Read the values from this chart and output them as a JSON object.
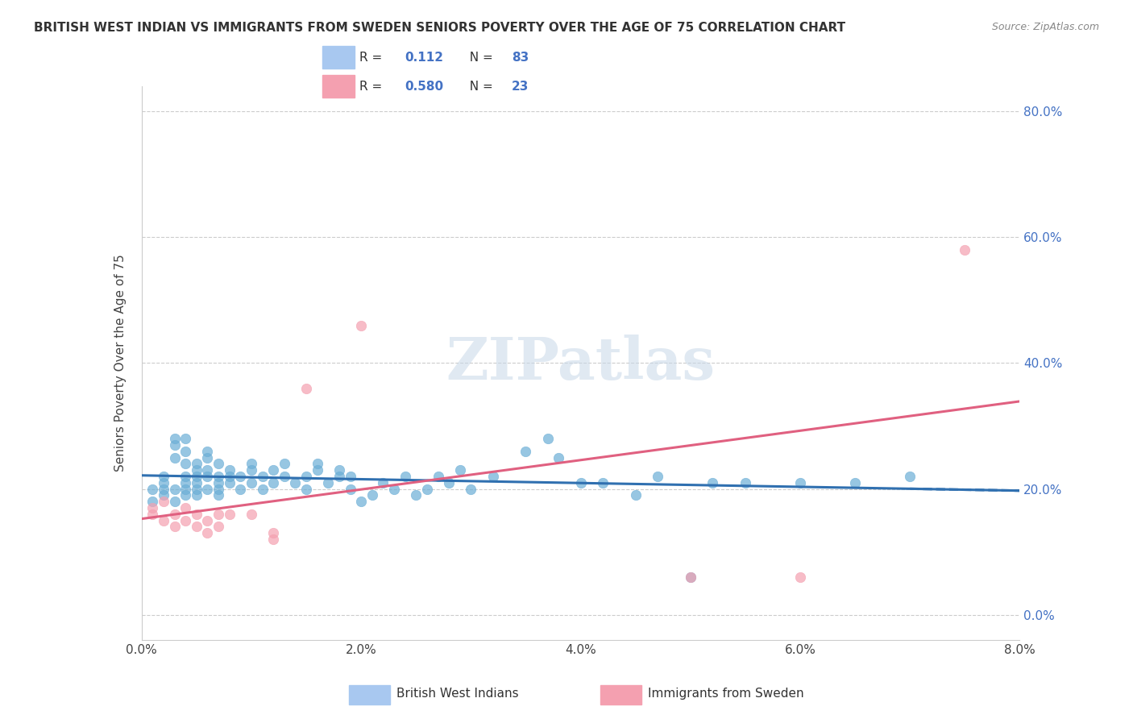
{
  "title": "BRITISH WEST INDIAN VS IMMIGRANTS FROM SWEDEN SENIORS POVERTY OVER THE AGE OF 75 CORRELATION CHART",
  "source": "Source: ZipAtlas.com",
  "xlabel_ticks": [
    "0.0%",
    "2.0%",
    "4.0%",
    "6.0%",
    "8.0%"
  ],
  "ylabel_label": "Seniors Poverty Over the Age of 75",
  "ylabel_ticks": [
    "0.0%",
    "20.0%",
    "40.0%",
    "60.0%",
    "80.0%"
  ],
  "xlim": [
    0.0,
    0.08
  ],
  "ylim": [
    -0.04,
    0.84
  ],
  "legend_entries": [
    {
      "label": "R =  0.112   N = 83",
      "color": "#a8c8f0",
      "R": 0.112,
      "N": 83
    },
    {
      "label": "R =  0.580   N = 23",
      "color": "#f4a0b0",
      "R": 0.58,
      "N": 23
    }
  ],
  "watermark": "ZIPatlas",
  "blue_color": "#6baed6",
  "pink_color": "#f4a0b0",
  "blue_line_color": "#3070b0",
  "pink_line_color": "#e06080",
  "blue_scatter": [
    [
      0.001,
      0.18
    ],
    [
      0.001,
      0.2
    ],
    [
      0.002,
      0.19
    ],
    [
      0.002,
      0.22
    ],
    [
      0.002,
      0.2
    ],
    [
      0.002,
      0.21
    ],
    [
      0.003,
      0.2
    ],
    [
      0.003,
      0.18
    ],
    [
      0.003,
      0.25
    ],
    [
      0.003,
      0.28
    ],
    [
      0.003,
      0.27
    ],
    [
      0.004,
      0.21
    ],
    [
      0.004,
      0.22
    ],
    [
      0.004,
      0.2
    ],
    [
      0.004,
      0.24
    ],
    [
      0.004,
      0.26
    ],
    [
      0.004,
      0.28
    ],
    [
      0.004,
      0.19
    ],
    [
      0.005,
      0.2
    ],
    [
      0.005,
      0.22
    ],
    [
      0.005,
      0.21
    ],
    [
      0.005,
      0.24
    ],
    [
      0.005,
      0.23
    ],
    [
      0.005,
      0.19
    ],
    [
      0.006,
      0.2
    ],
    [
      0.006,
      0.23
    ],
    [
      0.006,
      0.22
    ],
    [
      0.006,
      0.25
    ],
    [
      0.006,
      0.26
    ],
    [
      0.007,
      0.21
    ],
    [
      0.007,
      0.22
    ],
    [
      0.007,
      0.24
    ],
    [
      0.007,
      0.19
    ],
    [
      0.007,
      0.2
    ],
    [
      0.008,
      0.21
    ],
    [
      0.008,
      0.22
    ],
    [
      0.008,
      0.23
    ],
    [
      0.009,
      0.2
    ],
    [
      0.009,
      0.22
    ],
    [
      0.01,
      0.21
    ],
    [
      0.01,
      0.23
    ],
    [
      0.01,
      0.24
    ],
    [
      0.011,
      0.2
    ],
    [
      0.011,
      0.22
    ],
    [
      0.012,
      0.23
    ],
    [
      0.012,
      0.21
    ],
    [
      0.013,
      0.24
    ],
    [
      0.013,
      0.22
    ],
    [
      0.014,
      0.21
    ],
    [
      0.015,
      0.2
    ],
    [
      0.015,
      0.22
    ],
    [
      0.016,
      0.23
    ],
    [
      0.016,
      0.24
    ],
    [
      0.017,
      0.21
    ],
    [
      0.018,
      0.22
    ],
    [
      0.018,
      0.23
    ],
    [
      0.019,
      0.2
    ],
    [
      0.019,
      0.22
    ],
    [
      0.02,
      0.18
    ],
    [
      0.021,
      0.19
    ],
    [
      0.022,
      0.21
    ],
    [
      0.023,
      0.2
    ],
    [
      0.024,
      0.22
    ],
    [
      0.025,
      0.19
    ],
    [
      0.026,
      0.2
    ],
    [
      0.027,
      0.22
    ],
    [
      0.028,
      0.21
    ],
    [
      0.029,
      0.23
    ],
    [
      0.03,
      0.2
    ],
    [
      0.032,
      0.22
    ],
    [
      0.035,
      0.26
    ],
    [
      0.037,
      0.28
    ],
    [
      0.038,
      0.25
    ],
    [
      0.04,
      0.21
    ],
    [
      0.042,
      0.21
    ],
    [
      0.045,
      0.19
    ],
    [
      0.047,
      0.22
    ],
    [
      0.05,
      0.06
    ],
    [
      0.052,
      0.21
    ],
    [
      0.055,
      0.21
    ],
    [
      0.06,
      0.21
    ],
    [
      0.065,
      0.21
    ],
    [
      0.07,
      0.22
    ]
  ],
  "pink_scatter": [
    [
      0.001,
      0.17
    ],
    [
      0.001,
      0.16
    ],
    [
      0.002,
      0.15
    ],
    [
      0.002,
      0.18
    ],
    [
      0.003,
      0.14
    ],
    [
      0.003,
      0.16
    ],
    [
      0.004,
      0.15
    ],
    [
      0.004,
      0.17
    ],
    [
      0.005,
      0.14
    ],
    [
      0.005,
      0.16
    ],
    [
      0.006,
      0.15
    ],
    [
      0.006,
      0.13
    ],
    [
      0.007,
      0.16
    ],
    [
      0.007,
      0.14
    ],
    [
      0.008,
      0.16
    ],
    [
      0.01,
      0.16
    ],
    [
      0.012,
      0.13
    ],
    [
      0.012,
      0.12
    ],
    [
      0.015,
      0.36
    ],
    [
      0.02,
      0.46
    ],
    [
      0.05,
      0.06
    ],
    [
      0.06,
      0.06
    ],
    [
      0.075,
      0.58
    ]
  ]
}
